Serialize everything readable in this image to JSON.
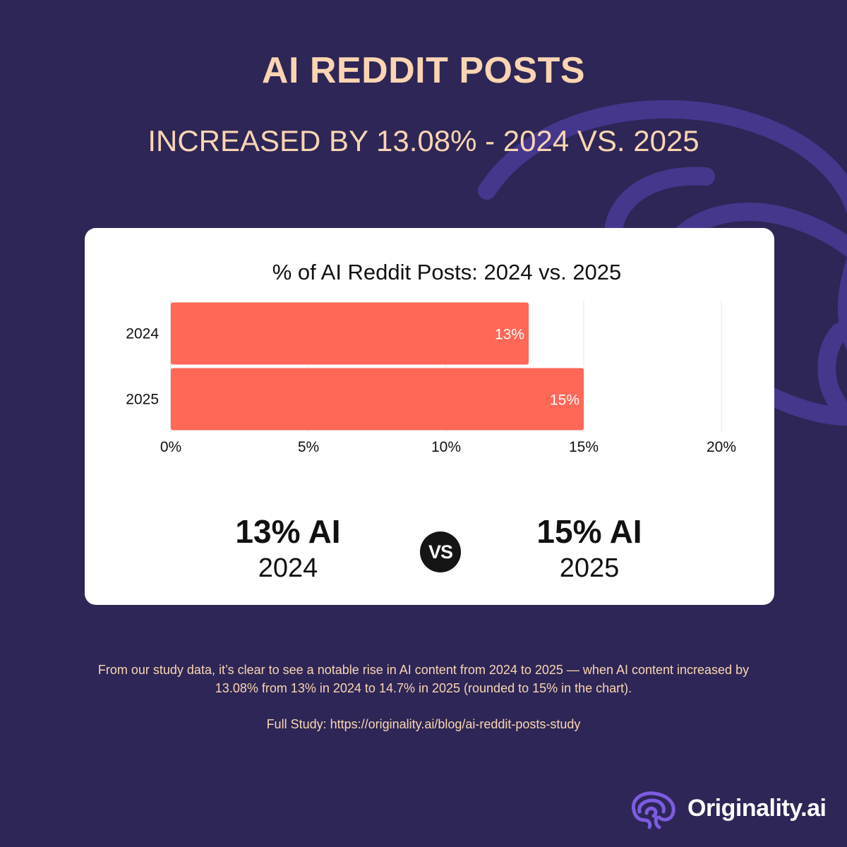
{
  "header": {
    "title": "AI REDDIT POSTS",
    "subtitle": "INCREASED BY 13.08% - 2024 VS. 2025"
  },
  "chart_data": {
    "type": "bar",
    "orientation": "horizontal",
    "title": "% of AI Reddit Posts: 2024 vs. 2025",
    "categories": [
      "2024",
      "2025"
    ],
    "values": [
      13,
      15
    ],
    "data_labels": [
      "13%",
      "15%"
    ],
    "xlim": [
      0,
      20
    ],
    "x_ticks": [
      0,
      5,
      10,
      15,
      20
    ],
    "x_tick_labels": [
      "0%",
      "5%",
      "10%",
      "15%",
      "20%"
    ],
    "grid": true,
    "legend": "none",
    "bar_color": "#ff6757"
  },
  "comparison": {
    "left": {
      "value": "13% AI",
      "year": "2024"
    },
    "vs_label": "VS",
    "right": {
      "value": "15% AI",
      "year": "2025"
    }
  },
  "footer": {
    "note": "From our study data, it’s clear to see a notable rise in AI content from 2024 to 2025 — when AI content increased by 13.08% from 13% in 2024 to 14.7% in 2025 (rounded to 15% in the chart).",
    "link": "Full Study: https://originality.ai/blog/ai-reddit-posts-study"
  },
  "brand": {
    "name": "Originality.ai",
    "logo_icon": "brain-icon",
    "accent": "#7c5ce0"
  },
  "colors": {
    "background": "#2d2656",
    "headline": "#fbd5b2",
    "swirl": "#4b3a9a"
  }
}
